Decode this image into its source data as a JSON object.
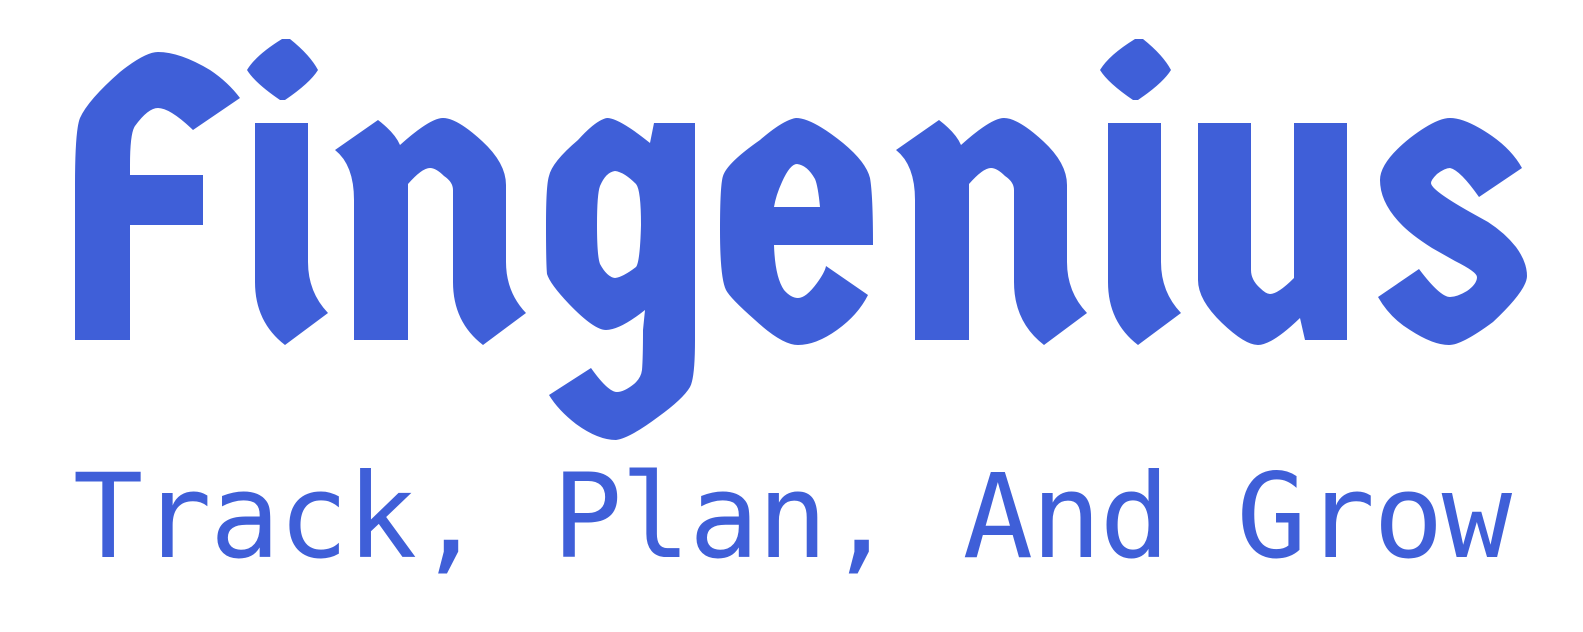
{
  "brand": {
    "name": "Fingenius",
    "tagline": "Track, Plan, And Grow",
    "color": "#3F5FD8"
  }
}
